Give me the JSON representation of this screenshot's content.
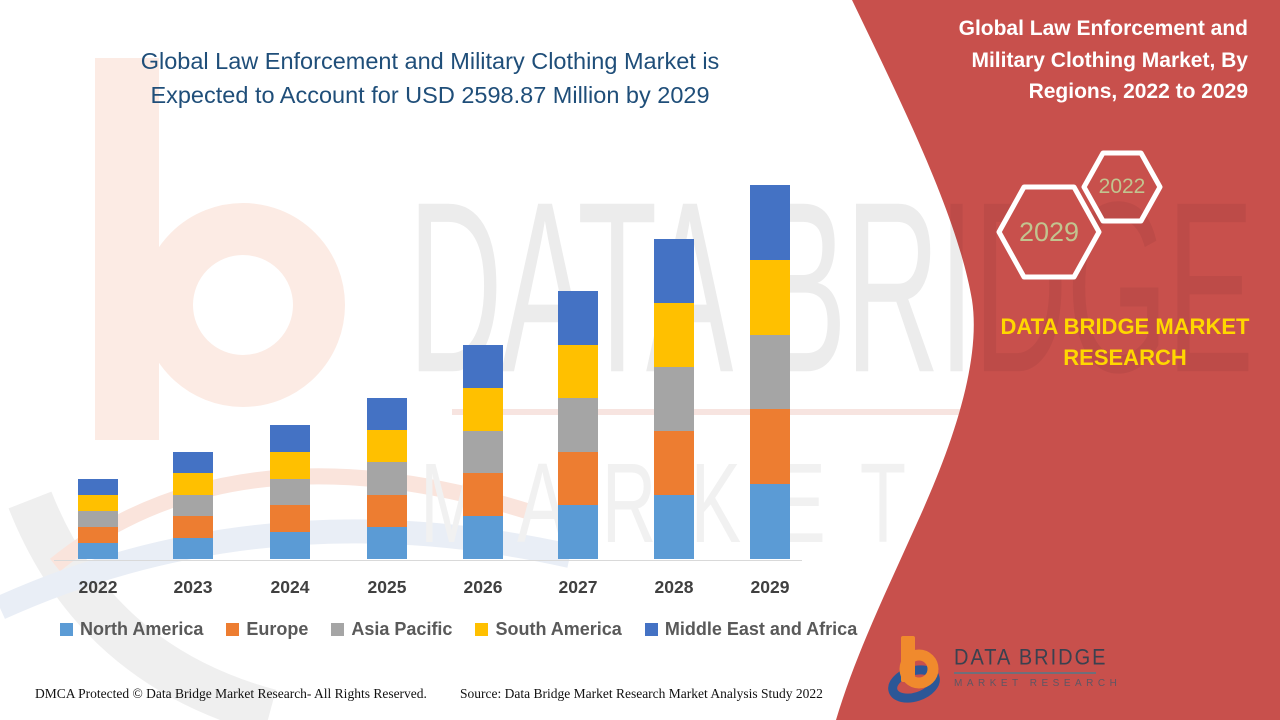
{
  "left_title": {
    "line1": "Global Law Enforcement and Military Clothing Market is",
    "line2": "Expected to Account for USD 2598.87 Million by 2029"
  },
  "right_panel": {
    "title_line1": "Global Law Enforcement and",
    "title_line2": "Military Clothing Market, By",
    "title_line3": "Regions, 2022 to 2029",
    "hexagon_front_label": "2029",
    "hexagon_back_label": "2022",
    "brand_line1": "DATA BRIDGE MARKET",
    "brand_line2": "RESEARCH",
    "logo_name": "DATA BRIDGE",
    "logo_sub": "MARKET RESEARCH"
  },
  "watermark": {
    "line1": "DATA BRIDGE",
    "line2": "MARKET RESEARCH"
  },
  "footer": {
    "dmca": "DMCA Protected © Data Bridge Market Research- All Rights Reserved.",
    "source": "Source: Data Bridge Market Research Market Analysis Study 2022"
  },
  "chart_data": {
    "type": "bar",
    "stacked": true,
    "title": "Global Law Enforcement and Military Clothing Market, By Regions, 2022 to 2029",
    "unit": "USD Million",
    "categories": [
      "2022",
      "2023",
      "2024",
      "2025",
      "2026",
      "2027",
      "2028",
      "2029"
    ],
    "series": [
      {
        "name": "North America",
        "color": "#5B9BD5",
        "values": [
          111.2,
          148.8,
          186.4,
          223.8,
          297.4,
          372.4,
          444.8,
          519.77
        ]
      },
      {
        "name": "Europe",
        "color": "#ED7D31",
        "values": [
          111.2,
          148.8,
          186.4,
          223.8,
          297.4,
          372.4,
          444.8,
          519.77
        ]
      },
      {
        "name": "Asia Pacific",
        "color": "#A5A5A5",
        "values": [
          111.2,
          148.8,
          186.4,
          223.8,
          297.4,
          372.4,
          444.8,
          519.77
        ]
      },
      {
        "name": "South America",
        "color": "#FFC000",
        "values": [
          111.2,
          148.8,
          186.4,
          223.8,
          297.4,
          372.4,
          444.8,
          519.77
        ]
      },
      {
        "name": "Middle East and Africa",
        "color": "#4472C4",
        "values": [
          111.2,
          148.8,
          186.4,
          223.8,
          297.4,
          372.4,
          444.8,
          519.77
        ]
      }
    ],
    "totals": [
      556,
      744,
      932,
      1119,
      1487,
      1862,
      2224,
      2598.87
    ],
    "ylim": [
      0,
      2700
    ],
    "grid": false,
    "legend_position": "bottom",
    "xlabel": "",
    "ylabel": ""
  },
  "colors": {
    "panel_red": "#C8504C",
    "headline_blue": "#1F4E79",
    "brand_yellow": "#FFD700",
    "hexagon_text": "#C2C48F",
    "axis_gray": "#D9D9D9"
  }
}
